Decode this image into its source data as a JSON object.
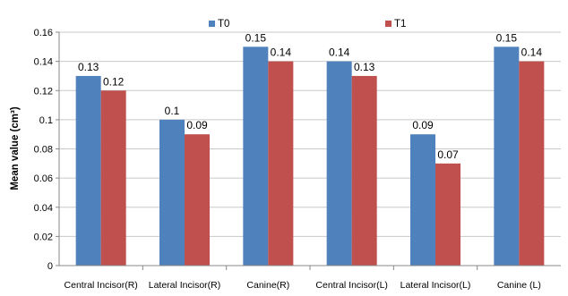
{
  "chart_data": {
    "type": "bar",
    "categories": [
      "Central Incisor(R)",
      "Lateral Incisor(R)",
      "Canine(R)",
      "Central Incisor(L)",
      "Lateral Incisor(L)",
      "Canine (L)"
    ],
    "series": [
      {
        "name": "T0",
        "values": [
          0.13,
          0.1,
          0.15,
          0.14,
          0.09,
          0.15
        ],
        "color": "#4F81BD"
      },
      {
        "name": "T1",
        "values": [
          0.12,
          0.09,
          0.14,
          0.13,
          0.07,
          0.14
        ],
        "color": "#C0504D"
      }
    ],
    "data_labels": [
      [
        "0.13",
        "0.1",
        "0.15",
        "0.14",
        "0.09",
        "0.15"
      ],
      [
        "0.12",
        "0.09",
        "0.14",
        "0.13",
        "0.07",
        "0.14"
      ]
    ],
    "title": "",
    "xlabel": "",
    "ylabel": "Mean value (cm³)",
    "ylim": [
      0,
      0.16
    ],
    "yticks": [
      "0",
      "0.02",
      "0.04",
      "0.06",
      "0.08",
      "0.1",
      "0.12",
      "0.14",
      "0.16"
    ],
    "grid": true,
    "legend_position": "top"
  }
}
